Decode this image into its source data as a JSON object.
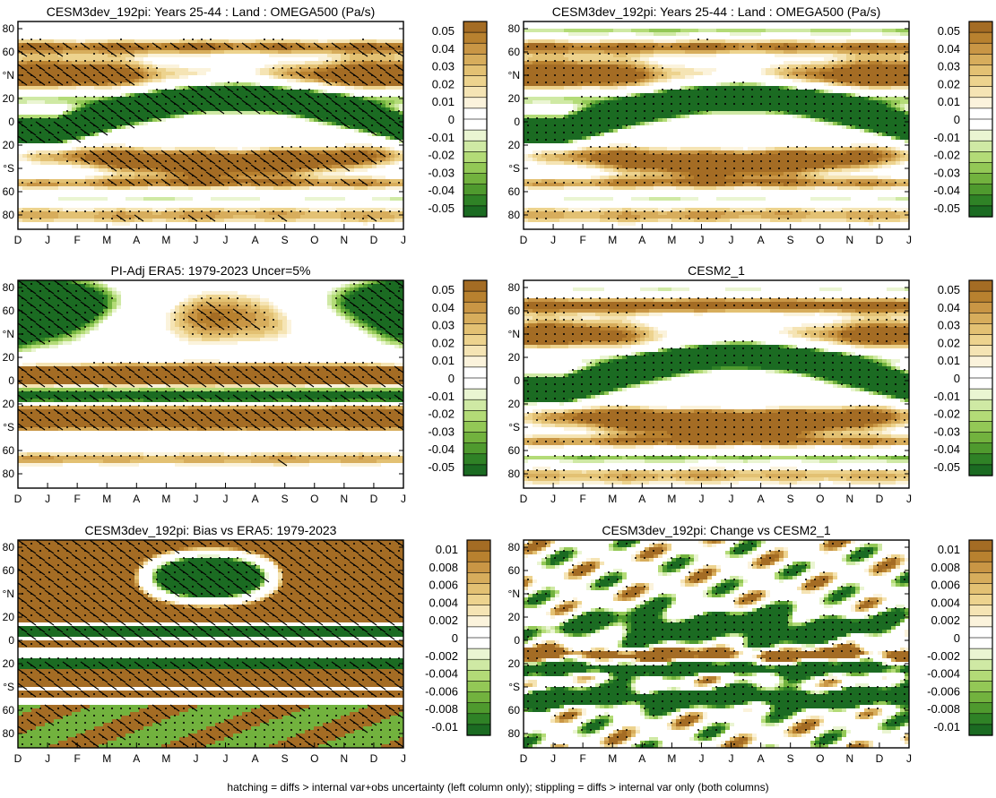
{
  "figure": {
    "caption": "hatching = diffs > internal var+obs uncertainty (left column only); stippling = diffs > internal var only (both columns)"
  },
  "colors": {
    "brown_scale": [
      "#fbf3dc",
      "#f5e4b4",
      "#edd38e",
      "#e3c173",
      "#d7ad5c",
      "#c99645",
      "#b8812f",
      "#a46c24"
    ],
    "green_scale": [
      "#eaf5d2",
      "#cfe9a4",
      "#b3db77",
      "#93c856",
      "#72b23e",
      "#4f9a2e",
      "#2f8226",
      "#1b6b22"
    ],
    "zero": "#ffffff"
  },
  "chart_data": [
    {
      "type": "heatmap",
      "title": "CESM3dev_192pi: Years 25-44 : Land : OMEGA500 (Pa/s)",
      "xlabel": "",
      "ylabel": "",
      "x_tick_labels": [
        "D",
        "J",
        "F",
        "M",
        "A",
        "M",
        "J",
        "J",
        "A",
        "S",
        "O",
        "N",
        "D",
        "J"
      ],
      "y_tick_labels": [
        "80",
        "60",
        "°N",
        "20",
        "0",
        "20",
        "°S",
        "60",
        "80"
      ],
      "colorbar_labels": [
        "0.05",
        "0.04",
        "0.03",
        "0.02",
        "0.01",
        "0",
        "-0.01",
        "-0.02",
        "-0.03",
        "-0.04",
        "-0.05"
      ],
      "colorbar_range": [
        -0.05,
        0.05
      ],
      "pattern": "climo_a",
      "hatching": true,
      "stippling": true
    },
    {
      "type": "heatmap",
      "title": "CESM3dev_192pi: Years 25-44 : Land : OMEGA500 (Pa/s)",
      "xlabel": "",
      "ylabel": "",
      "x_tick_labels": [
        "D",
        "J",
        "F",
        "M",
        "A",
        "M",
        "J",
        "J",
        "A",
        "S",
        "O",
        "N",
        "D",
        "J"
      ],
      "y_tick_labels": [
        "80",
        "60",
        "°N",
        "20",
        "0",
        "20",
        "°S",
        "60",
        "80"
      ],
      "colorbar_labels": [
        "0.05",
        "0.04",
        "0.03",
        "0.02",
        "0.01",
        "0",
        "-0.01",
        "-0.02",
        "-0.03",
        "-0.04",
        "-0.05"
      ],
      "colorbar_range": [
        -0.05,
        0.05
      ],
      "pattern": "climo_b",
      "hatching": false,
      "stippling": true
    },
    {
      "type": "heatmap",
      "title": "PI-Adj ERA5: 1979-2023 Uncer=5%",
      "xlabel": "",
      "ylabel": "",
      "x_tick_labels": [
        "D",
        "J",
        "F",
        "M",
        "A",
        "M",
        "J",
        "J",
        "A",
        "S",
        "O",
        "N",
        "D",
        "J"
      ],
      "y_tick_labels": [
        "80",
        "60",
        "°N",
        "20",
        "0",
        "20",
        "°S",
        "60",
        "80"
      ],
      "colorbar_labels": [
        "0.05",
        "0.04",
        "0.03",
        "0.02",
        "0.01",
        "0",
        "-0.01",
        "-0.02",
        "-0.03",
        "-0.04",
        "-0.05"
      ],
      "colorbar_range": [
        -0.05,
        0.05
      ],
      "pattern": "era5",
      "hatching": true,
      "stippling": true
    },
    {
      "type": "heatmap",
      "title": "CESM2_1",
      "xlabel": "",
      "ylabel": "",
      "x_tick_labels": [
        "D",
        "J",
        "F",
        "M",
        "A",
        "M",
        "J",
        "J",
        "A",
        "S",
        "O",
        "N",
        "D",
        "J"
      ],
      "y_tick_labels": [
        "80",
        "60",
        "°N",
        "20",
        "0",
        "20",
        "°S",
        "60",
        "80"
      ],
      "colorbar_labels": [
        "0.05",
        "0.04",
        "0.03",
        "0.02",
        "0.01",
        "0",
        "-0.01",
        "-0.02",
        "-0.03",
        "-0.04",
        "-0.05"
      ],
      "colorbar_range": [
        -0.05,
        0.05
      ],
      "pattern": "climo_c",
      "hatching": false,
      "stippling": true
    },
    {
      "type": "heatmap",
      "title": "CESM3dev_192pi: Bias vs ERA5: 1979-2023",
      "xlabel": "",
      "ylabel": "",
      "x_tick_labels": [
        "D",
        "J",
        "F",
        "M",
        "A",
        "M",
        "J",
        "J",
        "A",
        "S",
        "O",
        "N",
        "D",
        "J"
      ],
      "y_tick_labels": [
        "80",
        "60",
        "°N",
        "20",
        "0",
        "20",
        "°S",
        "60",
        "80"
      ],
      "colorbar_labels": [
        "0.01",
        "0.008",
        "0.006",
        "0.004",
        "0.002",
        "0",
        "-0.002",
        "-0.004",
        "-0.006",
        "-0.008",
        "-0.01"
      ],
      "colorbar_range": [
        -0.01,
        0.01
      ],
      "pattern": "bias",
      "hatching": true,
      "stippling": true
    },
    {
      "type": "heatmap",
      "title": "CESM3dev_192pi: Change vs CESM2_1",
      "xlabel": "",
      "ylabel": "",
      "x_tick_labels": [
        "D",
        "J",
        "F",
        "M",
        "A",
        "M",
        "J",
        "J",
        "A",
        "S",
        "O",
        "N",
        "D",
        "J"
      ],
      "y_tick_labels": [
        "80",
        "60",
        "°N",
        "20",
        "0",
        "20",
        "°S",
        "60",
        "80"
      ],
      "colorbar_labels": [
        "0.01",
        "0.008",
        "0.006",
        "0.004",
        "0.002",
        "0",
        "-0.002",
        "-0.004",
        "-0.006",
        "-0.008",
        "-0.01"
      ],
      "colorbar_range": [
        -0.01,
        0.01
      ],
      "pattern": "change",
      "hatching": false,
      "stippling": true
    }
  ]
}
